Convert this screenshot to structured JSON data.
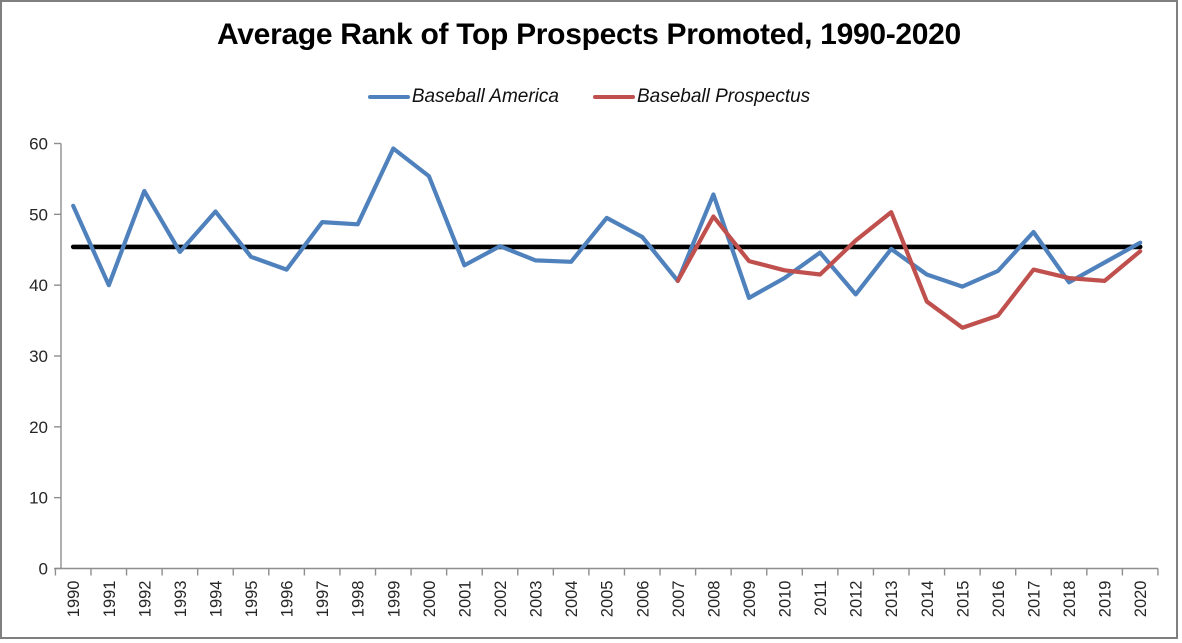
{
  "chart_data": {
    "type": "line",
    "title": "Average Rank of Top Prospects Promoted, 1990-2020",
    "categories": [
      "1990",
      "1991",
      "1992",
      "1993",
      "1994",
      "1995",
      "1996",
      "1997",
      "1998",
      "1999",
      "2000",
      "2001",
      "2002",
      "2003",
      "2004",
      "2005",
      "2006",
      "2007",
      "2008",
      "2009",
      "2010",
      "2011",
      "2012",
      "2013",
      "2014",
      "2015",
      "2016",
      "2017",
      "2018",
      "2019",
      "2020"
    ],
    "series": [
      {
        "name": "Baseball America",
        "color": "#4F81BD",
        "values": [
          51.2,
          40.0,
          53.3,
          44.7,
          50.4,
          44.0,
          42.2,
          48.9,
          48.6,
          59.3,
          55.4,
          42.8,
          45.5,
          43.5,
          43.3,
          49.5,
          46.8,
          40.6,
          52.8,
          38.2,
          41.0,
          44.6,
          38.7,
          45.1,
          41.5,
          39.8,
          42.0,
          47.5,
          40.4,
          43.2,
          46.0
        ]
      },
      {
        "name": "Baseball Prospectus",
        "color": "#C0504D",
        "values": [
          null,
          null,
          null,
          null,
          null,
          null,
          null,
          null,
          null,
          null,
          null,
          null,
          null,
          null,
          null,
          null,
          null,
          40.6,
          49.7,
          43.4,
          42.1,
          41.5,
          46.3,
          50.3,
          37.7,
          34.0,
          35.7,
          42.2,
          41.0,
          40.6,
          44.8
        ]
      }
    ],
    "reference_line": {
      "value": 45.4,
      "color": "#000000"
    },
    "ylim": [
      0,
      60
    ],
    "yticks": [
      0,
      10,
      20,
      30,
      40,
      50,
      60
    ],
    "grid": false,
    "legend_position": "top",
    "axis_color": "#8E8E8E"
  },
  "legend": {
    "items": [
      {
        "label": "Baseball America",
        "color": "#4F81BD"
      },
      {
        "label": "Baseball Prospectus",
        "color": "#C0504D"
      }
    ]
  },
  "frame": {
    "border_color": "#7F7F7F",
    "background": "#FFFFFF"
  }
}
